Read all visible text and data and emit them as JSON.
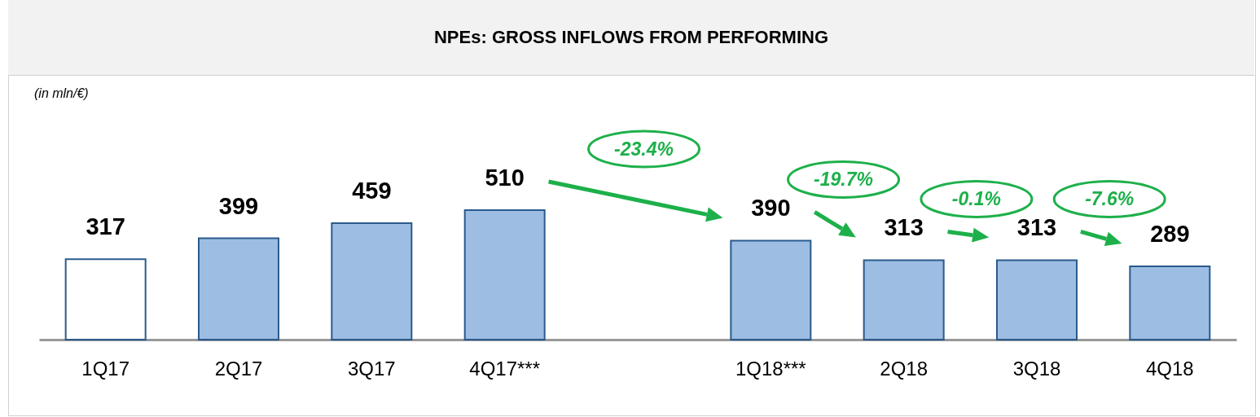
{
  "chart_data": {
    "type": "bar",
    "title": "NPEs: GROSS INFLOWS FROM PERFORMING",
    "subtitle": "(in mln/€)",
    "categories": [
      "1Q17",
      "2Q17",
      "3Q17",
      "4Q17***",
      null,
      "1Q18***",
      "2Q18",
      "3Q18",
      "4Q18"
    ],
    "values": [
      317,
      399,
      459,
      510,
      null,
      390,
      313,
      313,
      289
    ],
    "colors": [
      "#ffffff",
      "#9dbde3",
      "#9dbde3",
      "#9dbde3",
      null,
      "#9dbde3",
      "#9dbde3",
      "#9dbde3",
      "#9dbde3"
    ],
    "data_labels": true,
    "annotations": [
      "-23.4%",
      "-19.7%",
      "-0.1%",
      "-7.6%"
    ]
  }
}
